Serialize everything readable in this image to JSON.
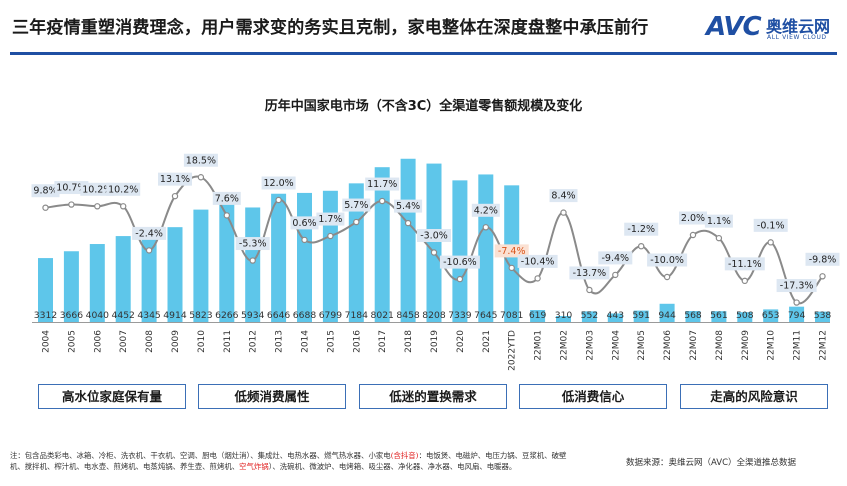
{
  "header": {
    "title": "三年疫情重塑消费理念，用户需求变的务实且克制，家电整体在深度盘整中承压前行",
    "logo": {
      "mark": "AVC",
      "name_cn": "奥维云网",
      "name_en": "ALL VIEW CLOUD"
    }
  },
  "chart_data": {
    "type": "bar",
    "title": "历年中国家电市场（不含3C）全渠道零售额规模及变化",
    "categories": [
      "2004",
      "2005",
      "2006",
      "2007",
      "2008",
      "2009",
      "2010",
      "2011",
      "2012",
      "2013",
      "2014",
      "2015",
      "2016",
      "2017",
      "2018",
      "2019",
      "2020",
      "2021",
      "2022YTD",
      "22M01",
      "22M02",
      "22M03",
      "22M04",
      "22M05",
      "22M06",
      "22M07",
      "22M08",
      "22M09",
      "22M10",
      "22M11",
      "22M12"
    ],
    "series": [
      {
        "type": "bar",
        "values": [
          3312,
          3666,
          4040,
          4452,
          4345,
          4914,
          5823,
          6266,
          5934,
          6646,
          6688,
          6799,
          7184,
          8021,
          8458,
          8208,
          7339,
          7645,
          7081,
          619,
          310,
          552,
          443,
          591,
          944,
          568,
          561,
          508,
          653,
          794,
          538
        ]
      },
      {
        "type": "line",
        "values": [
          9.8,
          10.7,
          10.2,
          10.2,
          -2.4,
          13.1,
          18.5,
          7.6,
          -5.3,
          12.0,
          0.6,
          1.7,
          5.7,
          11.7,
          5.4,
          -3.0,
          -10.6,
          4.2,
          -7.4,
          -10.4,
          8.4,
          -13.7,
          -9.4,
          -1.2,
          -10.0,
          2.0,
          1.1,
          -11.1,
          -0.1,
          -17.3,
          -9.8
        ]
      }
    ],
    "growth_labels": [
      "9.8%",
      "10.7%",
      "10.2%",
      "10.2%",
      "-2.4%",
      "13.1%",
      "18.5%",
      "7.6%",
      "-5.3%",
      "12.0%",
      "0.6%",
      "1.7%",
      "5.7%",
      "11.7%",
      "5.4%",
      "-3.0%",
      "-10.6%",
      "4.2%",
      "-7.4%",
      "-10.4%",
      "8.4%",
      "-13.7%",
      "-9.4%",
      "-1.2%",
      "-10.0%",
      "2.0%",
      "1.1%",
      "-11.1%",
      "-0.1%",
      "-17.3%",
      "-9.8%"
    ],
    "highlight_index": 18,
    "colors": {
      "bar": "#5ec6ea",
      "line": "#8a8a8a",
      "label_bg": "#dde7f2",
      "highlight_bg": "#fbe1d3",
      "highlight_text": "#d9541a"
    },
    "grid": false,
    "legend": "none"
  },
  "factors": [
    "高水位家庭保有量",
    "低频消费属性",
    "低迷的置换需求",
    "低消费信心",
    "走高的风险意识"
  ],
  "footnote": {
    "part1": "注：包含品类彩电、冰箱、冷柜、洗衣机、干衣机、空调、厨电（烟灶消）、集成灶、电热水器、燃气热水器、小家电",
    "red1": "(含抖音)",
    "part2": "：电饭煲、电磁炉、电压力锅、豆浆机、破壁机、搅拌机、榨汁机、电水壶、煎烤机、电蒸炖锅、养生壶、煎烤机、",
    "red2": "空气炸锅",
    "part3": "）、洗碗机、微波炉、电烤箱、吸尘器、净化器、净水器、电风扇、电暖器。"
  },
  "source": "数据来源：奥维云网（AVC）全渠道推总数据"
}
